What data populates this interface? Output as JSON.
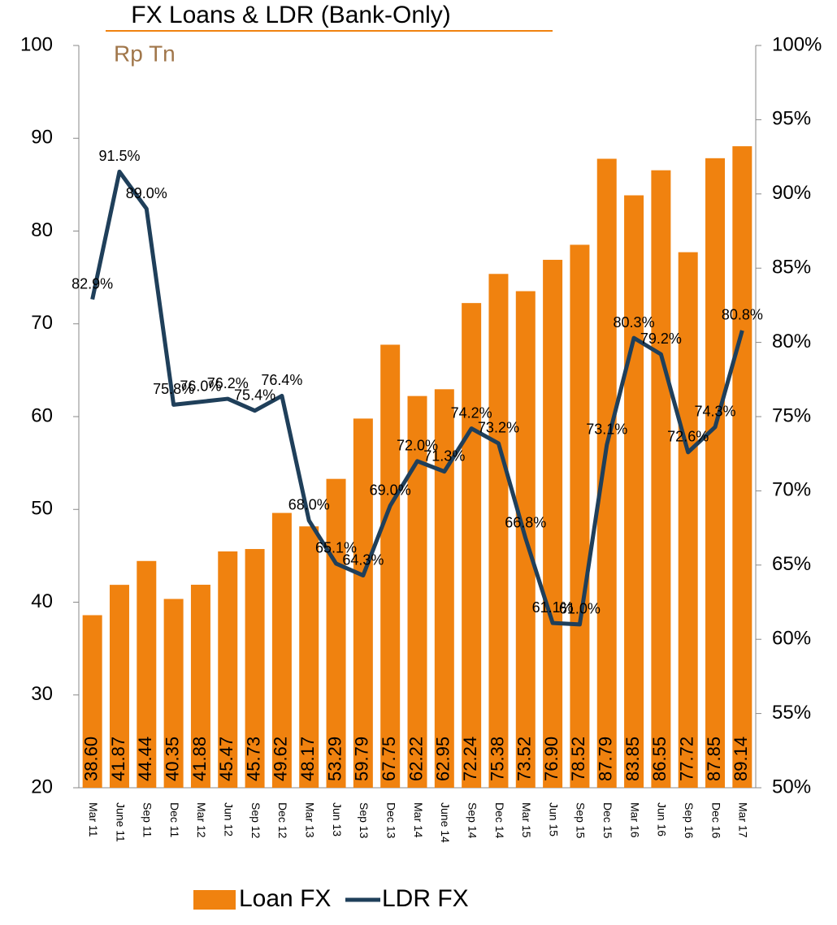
{
  "chart_data": {
    "type": "bar_line",
    "title": "FX Loans  & LDR (Bank-Only)",
    "subtitle": "Rp Tn",
    "categories": [
      "Mar 11",
      "June 11",
      "Sep 11",
      "Dec 11",
      "Mar 12",
      "Jun 12",
      "Sep 12",
      "Dec 12",
      "Mar 13",
      "Jun 13",
      "Sep 13",
      "Dec 13",
      "Mar 14",
      "June 14",
      "Sep 14",
      "Dec 14",
      "Mar 15",
      "Jun 15",
      "Sep 15",
      "Dec 15",
      "Mar 16",
      "Jun 16",
      "Sep 16",
      "Dec 16",
      "Mar 17"
    ],
    "series": [
      {
        "name": "Loan FX",
        "color": "#f0820f",
        "values": [
          38.6,
          41.87,
          44.44,
          40.35,
          41.88,
          45.47,
          45.73,
          49.62,
          48.17,
          53.29,
          59.79,
          67.75,
          62.22,
          62.95,
          72.24,
          75.38,
          73.52,
          76.9,
          78.52,
          87.79,
          83.85,
          86.55,
          77.72,
          87.85,
          89.14
        ],
        "value_labels": [
          "38.60",
          "41.87",
          "44.44",
          "40.35",
          "41.88",
          "45.47",
          "45.73",
          "49.62",
          "48.17",
          "53.29",
          "59.79",
          "67.75",
          "62.22",
          "62.95",
          "72.24",
          "75.38",
          "73.52",
          "76.90",
          "78.52",
          "87.79",
          "83.85",
          "86.55",
          "77.72",
          "87.85",
          "89.14"
        ]
      },
      {
        "name": "LDR FX",
        "color": "#1f3f5a",
        "axis": "y2",
        "values": [
          82.9,
          91.5,
          89.0,
          75.8,
          76.0,
          76.2,
          75.4,
          76.4,
          68.0,
          65.1,
          64.3,
          69.0,
          72.0,
          71.3,
          74.2,
          73.2,
          66.8,
          61.1,
          61.0,
          73.1,
          80.3,
          79.2,
          72.6,
          74.3,
          80.8
        ],
        "value_labels": [
          "82.9%",
          "91.5%",
          "89.0%",
          "75.8%",
          "76.0%",
          "76.2%",
          "75.4%",
          "76.4%",
          "68.0%",
          "65.1%",
          "64.3%",
          "69.0%",
          "72.0%",
          "71.3%",
          "74.2%",
          "73.2%",
          "66.8%",
          "61.1%",
          "61.0%",
          "73.1%",
          "80.3%",
          "79.2%",
          "72.6%",
          "74.3%",
          "80.8%"
        ]
      }
    ],
    "ylim": [
      20,
      100
    ],
    "yticks": [
      20,
      30,
      40,
      50,
      60,
      70,
      80,
      90,
      100
    ],
    "y2lim": [
      50,
      100
    ],
    "y2ticks": [
      {
        "value": 50,
        "label": "50%"
      },
      {
        "value": 55,
        "label": "55%"
      },
      {
        "value": 60,
        "label": "60%"
      },
      {
        "value": 65,
        "label": "65%"
      },
      {
        "value": 70,
        "label": "70%"
      },
      {
        "value": 75,
        "label": "75%"
      },
      {
        "value": 80,
        "label": "80%"
      },
      {
        "value": 85,
        "label": "85%"
      },
      {
        "value": 90,
        "label": "90%"
      },
      {
        "value": 95,
        "label": "95%"
      },
      {
        "value": 100,
        "label": "100%"
      }
    ],
    "legend": "bottom"
  }
}
